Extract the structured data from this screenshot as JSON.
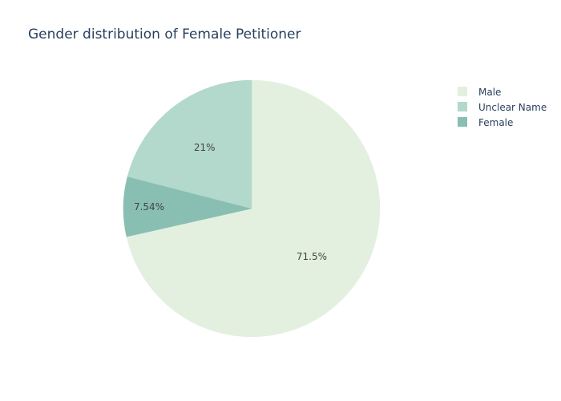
{
  "chart_data": {
    "type": "pie",
    "title": "Gender distribution of Female Petitioner",
    "slices": [
      {
        "label": "Male",
        "value": 71.5,
        "text": "71.5%",
        "color": "#e3f0df"
      },
      {
        "label": "Unclear Name",
        "value": 21.0,
        "text": "21%",
        "color": "#b3d8cc"
      },
      {
        "label": "Female",
        "value": 7.54,
        "text": "7.54%",
        "color": "#89bfb3"
      }
    ],
    "legend": {
      "placement": "top-right",
      "entries": [
        "Male",
        "Unclear Name",
        "Female"
      ]
    },
    "direction": "clockwise",
    "start": "top"
  }
}
